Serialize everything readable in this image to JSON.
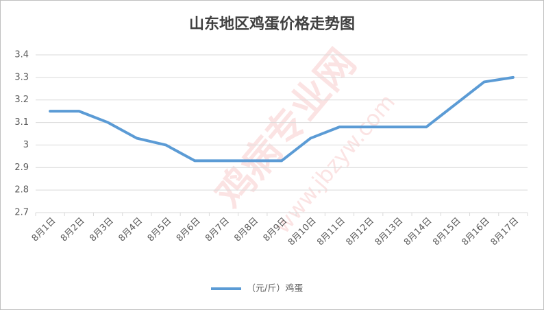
{
  "chart_data": {
    "type": "line",
    "title": "山东地区鸡蛋价格走势图",
    "categories": [
      "8月1日",
      "8月2日",
      "8月3日",
      "8月4日",
      "8月5日",
      "8月6日",
      "8月7日",
      "8月8日",
      "8月9日",
      "8月10日",
      "8月11日",
      "8月12日",
      "8月13日",
      "8月14日",
      "8月15日",
      "8月16日",
      "8月17日"
    ],
    "series": [
      {
        "name": "（元/斤）鸡蛋",
        "color": "#5b9bd5",
        "values": [
          3.15,
          3.15,
          3.1,
          3.03,
          3.0,
          2.93,
          2.93,
          2.93,
          2.93,
          3.03,
          3.08,
          3.08,
          3.08,
          3.08,
          3.18,
          3.28,
          3.3
        ]
      }
    ],
    "ylim": [
      2.7,
      3.4
    ],
    "yticks": [
      2.7,
      2.8,
      2.9,
      3,
      3.1,
      3.2,
      3.3,
      3.4
    ],
    "grid": true,
    "legend": "bottom",
    "watermark": [
      "鸡病专业网",
      "www.jbzyw.com"
    ]
  }
}
